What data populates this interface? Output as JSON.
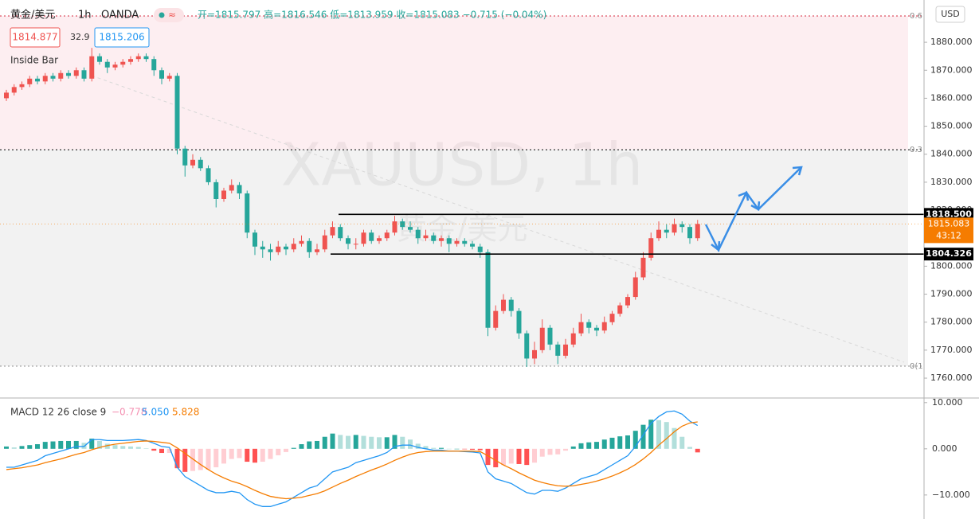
{
  "chart_data": [
    {
      "type": "candlestick",
      "symbol": "黄金/美元",
      "interval": "1h",
      "source": "OANDA",
      "ohlc_header": "开=1815.797 高=1816.546 低=1813.959 收=1815.083 −0.715 (−0.04%)",
      "bid": "1814.877",
      "spread": "32.9",
      "ask": "1815.206",
      "indicator": "Inside Bar",
      "watermark": "XAUUSD, 1h",
      "watermark_sub": "黄金/美元",
      "currency": "USD",
      "up_color": "#ef5350",
      "down_color": "#26a69a",
      "ylim": [
        1752.9,
        1895.1
      ],
      "yticks": [
        {
          "value": 1880,
          "label": "1880.000"
        },
        {
          "value": 1870,
          "label": "1870.000"
        },
        {
          "value": 1860,
          "label": "1860.000"
        },
        {
          "value": 1850,
          "label": "1850.000"
        },
        {
          "value": 1840,
          "label": "1840.000"
        },
        {
          "value": 1830,
          "label": "1830.000"
        },
        {
          "value": 1820,
          "label": "1820.000"
        },
        {
          "value": 1810,
          "label": "1810.000"
        },
        {
          "value": 1800,
          "label": "1800.000"
        },
        {
          "value": 1790,
          "label": "1790.000"
        },
        {
          "value": 1780,
          "label": "1780.000"
        },
        {
          "value": 1770,
          "label": "1770.000"
        },
        {
          "value": 1760,
          "label": "1760.000"
        }
      ],
      "fib_levels": [
        {
          "value": 1889.4,
          "label": "0.6",
          "color": "#e06070"
        },
        {
          "value": 1841.6,
          "label": "0.3",
          "color": "#333333"
        },
        {
          "value": 1764.3,
          "label": "0(1",
          "color": "#aaaaaa"
        }
      ],
      "zone_colors": [
        "#fdeef1",
        "#f2f2f2"
      ],
      "levels": [
        {
          "value": 1818.5,
          "label": "1818.500"
        },
        {
          "value": 1804.326,
          "label": "1804.326"
        }
      ],
      "last_price": {
        "value": 1815.083,
        "label": "1815.083"
      },
      "last_color": "#f57c00",
      "countdown": "43:12",
      "ohlc": [
        [
          1860,
          1863,
          1859,
          1862
        ],
        [
          1862,
          1865,
          1861,
          1864
        ],
        [
          1864,
          1866,
          1863,
          1865
        ],
        [
          1865,
          1868,
          1864,
          1867
        ],
        [
          1867,
          1868,
          1865,
          1866
        ],
        [
          1866,
          1869,
          1865,
          1868
        ],
        [
          1868,
          1869,
          1866,
          1867
        ],
        [
          1867,
          1870,
          1866,
          1869
        ],
        [
          1869,
          1870,
          1867,
          1868
        ],
        [
          1868,
          1871,
          1867,
          1870
        ],
        [
          1870,
          1871,
          1866,
          1867
        ],
        [
          1867,
          1878,
          1866,
          1875
        ],
        [
          1875,
          1876,
          1872,
          1873
        ],
        [
          1873,
          1874,
          1869,
          1871
        ],
        [
          1871,
          1873,
          1870,
          1872
        ],
        [
          1872,
          1874,
          1871,
          1873
        ],
        [
          1873,
          1875,
          1872,
          1874
        ],
        [
          1874,
          1876,
          1873,
          1875
        ],
        [
          1875,
          1876,
          1873,
          1874
        ],
        [
          1874,
          1875,
          1868,
          1870
        ],
        [
          1870,
          1871,
          1865,
          1867
        ],
        [
          1867,
          1869,
          1866,
          1868
        ],
        [
          1868,
          1869,
          1840,
          1842
        ],
        [
          1842,
          1843,
          1832,
          1836
        ],
        [
          1836,
          1840,
          1835,
          1838
        ],
        [
          1838,
          1839,
          1834,
          1835
        ],
        [
          1835,
          1836,
          1829,
          1830
        ],
        [
          1830,
          1831,
          1821,
          1824
        ],
        [
          1824,
          1828,
          1823,
          1827
        ],
        [
          1827,
          1831,
          1826,
          1829
        ],
        [
          1829,
          1830,
          1824,
          1826
        ],
        [
          1826,
          1827,
          1810,
          1812
        ],
        [
          1812,
          1813,
          1804,
          1807
        ],
        [
          1807,
          1809,
          1803,
          1806
        ],
        [
          1806,
          1808,
          1802,
          1805
        ],
        [
          1805,
          1809,
          1804,
          1807
        ],
        [
          1807,
          1808,
          1804,
          1806
        ],
        [
          1806,
          1810,
          1805,
          1808
        ],
        [
          1808,
          1811,
          1807,
          1809
        ],
        [
          1809,
          1810,
          1803,
          1805
        ],
        [
          1805,
          1808,
          1804,
          1806
        ],
        [
          1806,
          1813,
          1805,
          1811
        ],
        [
          1811,
          1816,
          1810,
          1814
        ],
        [
          1814,
          1815,
          1809,
          1810
        ],
        [
          1810,
          1811,
          1806,
          1808
        ],
        [
          1808,
          1810,
          1806,
          1808
        ],
        [
          1808,
          1813,
          1807,
          1812
        ],
        [
          1812,
          1813,
          1808,
          1809
        ],
        [
          1809,
          1811,
          1808,
          1810
        ],
        [
          1810,
          1813,
          1809,
          1812
        ],
        [
          1812,
          1818,
          1811,
          1816
        ],
        [
          1816,
          1817,
          1813,
          1814
        ],
        [
          1814,
          1816,
          1812,
          1813
        ],
        [
          1813,
          1814,
          1808,
          1810
        ],
        [
          1810,
          1813,
          1809,
          1811
        ],
        [
          1811,
          1812,
          1808,
          1809
        ],
        [
          1809,
          1811,
          1807,
          1810
        ],
        [
          1810,
          1811,
          1805,
          1808
        ],
        [
          1808,
          1810,
          1807,
          1809
        ],
        [
          1809,
          1810,
          1807,
          1808
        ],
        [
          1808,
          1809,
          1806,
          1807
        ],
        [
          1807,
          1808,
          1803,
          1805
        ],
        [
          1805,
          1806,
          1775,
          1778
        ],
        [
          1778,
          1786,
          1777,
          1784
        ],
        [
          1784,
          1790,
          1783,
          1788
        ],
        [
          1788,
          1789,
          1782,
          1784
        ],
        [
          1784,
          1785,
          1774,
          1776
        ],
        [
          1776,
          1777,
          1764,
          1767
        ],
        [
          1767,
          1773,
          1765,
          1770
        ],
        [
          1770,
          1781,
          1769,
          1778
        ],
        [
          1778,
          1779,
          1770,
          1772
        ],
        [
          1772,
          1773,
          1765,
          1768
        ],
        [
          1768,
          1774,
          1767,
          1772
        ],
        [
          1772,
          1778,
          1771,
          1776
        ],
        [
          1776,
          1783,
          1775,
          1780
        ],
        [
          1780,
          1781,
          1776,
          1778
        ],
        [
          1778,
          1779,
          1775,
          1777
        ],
        [
          1777,
          1782,
          1776,
          1780
        ],
        [
          1780,
          1784,
          1779,
          1783
        ],
        [
          1783,
          1787,
          1782,
          1786
        ],
        [
          1786,
          1790,
          1785,
          1789
        ],
        [
          1789,
          1798,
          1788,
          1796
        ],
        [
          1796,
          1805,
          1795,
          1803
        ],
        [
          1803,
          1812,
          1802,
          1810
        ],
        [
          1810,
          1816,
          1809,
          1813
        ],
        [
          1813,
          1815,
          1810,
          1812
        ],
        [
          1812,
          1817,
          1811,
          1815
        ],
        [
          1815,
          1816,
          1812,
          1814
        ],
        [
          1814,
          1815,
          1808,
          1810
        ],
        [
          1810,
          1816.546,
          1809,
          1815.083
        ]
      ]
    },
    {
      "type": "macd",
      "title": "MACD 12 26 close 9",
      "legend_labels": [
        "−0.778",
        "5.050",
        "5.828"
      ],
      "ylim": [
        -15.2,
        11.0
      ],
      "yticks": [
        {
          "value": 10,
          "label": "10.000"
        },
        {
          "value": 0,
          "label": "0.000"
        },
        {
          "value": -10,
          "label": "−10.000"
        }
      ],
      "hist_colors": [
        "#26a69a",
        "#b2dfdb",
        "#ffcdd2",
        "#ff5252"
      ],
      "histogram": [
        0.5,
        0.3,
        0.6,
        0.8,
        1,
        1.5,
        1.6,
        1.7,
        1.7,
        1.7,
        1.3,
        2.2,
        1.7,
        1.1,
        0.8,
        0.6,
        0.5,
        0.4,
        0.1,
        -0.4,
        -0.9,
        -0.9,
        -4.2,
        -5,
        -4.8,
        -4.6,
        -4.5,
        -4,
        -3.2,
        -2.2,
        -2,
        -2.8,
        -3,
        -2.8,
        -2.2,
        -1.4,
        -0.7,
        0.2,
        1,
        1.6,
        1.7,
        2.6,
        3.3,
        3,
        2.8,
        3,
        2.8,
        2.6,
        2.5,
        2.5,
        3,
        2.6,
        2,
        1.1,
        0.6,
        0.2,
        0.2,
        0,
        0,
        -0.1,
        -0.2,
        -0.3,
        -3.5,
        -4,
        -3.5,
        -3.2,
        -3.3,
        -3.5,
        -3,
        -1.7,
        -1.3,
        -1.2,
        -0.4,
        0.5,
        1.2,
        1.4,
        1.5,
        2,
        2.4,
        2.7,
        2.9,
        3.9,
        5.2,
        6.3,
        6.2,
        5.8,
        4.5,
        2.6,
        0.4,
        -0.778
      ],
      "series": [
        {
          "color": "#2196f3",
          "values": [
            -4,
            -4,
            -3.5,
            -3,
            -2.5,
            -1.5,
            -1,
            -0.5,
            0,
            0.5,
            0.5,
            2,
            2,
            1.8,
            1.8,
            1.8,
            1.9,
            2,
            1.8,
            1.2,
            0.5,
            0.3,
            -4,
            -6,
            -7,
            -8,
            -9,
            -9.5,
            -9.5,
            -9.2,
            -9.5,
            -11,
            -12,
            -12.5,
            -12.5,
            -12,
            -11.5,
            -10.5,
            -9.5,
            -8.5,
            -8,
            -6.5,
            -5,
            -4.5,
            -4,
            -3,
            -2.5,
            -2,
            -1.5,
            -0.8,
            0.5,
            0.8,
            0.8,
            0.3,
            0,
            -0.3,
            -0.3,
            -0.5,
            -0.5,
            -0.6,
            -0.7,
            -0.9,
            -5,
            -6.5,
            -7,
            -7.5,
            -8.5,
            -9.5,
            -9.8,
            -9,
            -9,
            -9.2,
            -8.5,
            -7.5,
            -6.5,
            -6,
            -5.5,
            -4.5,
            -3.5,
            -2.5,
            -1.5,
            0.5,
            3,
            5.5,
            7,
            8,
            8.2,
            7.5,
            6,
            5.05
          ]
        },
        {
          "color": "#f57c00",
          "values": [
            -4.5,
            -4.3,
            -4.1,
            -3.8,
            -3.5,
            -3,
            -2.6,
            -2.2,
            -1.7,
            -1.2,
            -0.8,
            -0.2,
            0.3,
            0.7,
            1,
            1.2,
            1.4,
            1.6,
            1.7,
            1.6,
            1.4,
            1.2,
            0.2,
            -1,
            -2.2,
            -3.4,
            -4.5,
            -5.5,
            -6.3,
            -7,
            -7.5,
            -8.2,
            -9,
            -9.7,
            -10.3,
            -10.6,
            -10.8,
            -10.7,
            -10.5,
            -10.1,
            -9.7,
            -9.1,
            -8.3,
            -7.5,
            -6.8,
            -6,
            -5.3,
            -4.6,
            -4,
            -3.3,
            -2.5,
            -1.8,
            -1.2,
            -0.8,
            -0.6,
            -0.5,
            -0.5,
            -0.5,
            -0.5,
            -0.5,
            -0.5,
            -0.6,
            -1.5,
            -2.5,
            -3.5,
            -4.3,
            -5.2,
            -6,
            -6.8,
            -7.3,
            -7.7,
            -8,
            -8.1,
            -8,
            -7.7,
            -7.4,
            -7,
            -6.5,
            -5.9,
            -5.2,
            -4.4,
            -3.4,
            -2.2,
            -0.8,
            0.8,
            2.2,
            3.7,
            4.9,
            5.6,
            5.828
          ]
        }
      ]
    }
  ]
}
